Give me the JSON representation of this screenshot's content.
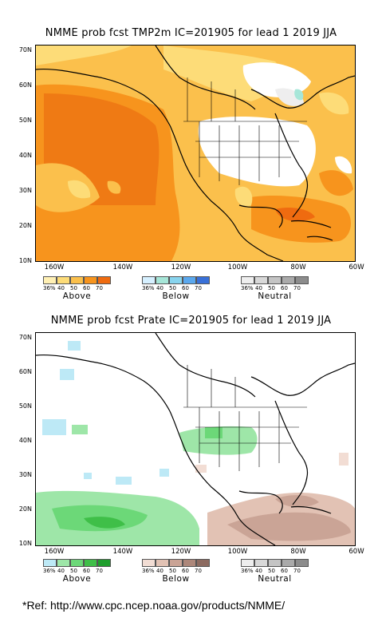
{
  "maps": [
    {
      "title": "NMME prob fcst TMP2m IC=201905 for lead 1 2019 JJA",
      "variable": "TMP2m",
      "lat_labels": [
        "70N",
        "60N",
        "50N",
        "40N",
        "30N",
        "20N",
        "10N"
      ],
      "lon_labels": [
        "160W",
        "140W",
        "120W",
        "100W",
        "80W",
        "60W"
      ],
      "legends": [
        {
          "name": "Above",
          "ticks": [
            "36%",
            "40",
            "50",
            "60",
            "70"
          ],
          "colors": [
            "#fff0b4",
            "#fddc78",
            "#fbc04c",
            "#f7941d",
            "#ef6b10"
          ]
        },
        {
          "name": "Below",
          "ticks": [
            "36%",
            "40",
            "50",
            "60",
            "70"
          ],
          "colors": [
            "#d6f0ff",
            "#a6e6d8",
            "#88d4ee",
            "#5aa8ee",
            "#3870d8"
          ]
        },
        {
          "name": "Neutral",
          "ticks": [
            "36%",
            "40",
            "50",
            "60",
            "70"
          ],
          "colors": [
            "#eeeeee",
            "#d8d8d8",
            "#c4c4c4",
            "#aaaaaa",
            "#8c8c8c"
          ]
        }
      ]
    },
    {
      "title": "NMME prob fcst Prate IC=201905 for lead 1 2019 JJA",
      "variable": "Prate",
      "lat_labels": [
        "70N",
        "60N",
        "50N",
        "40N",
        "30N",
        "20N",
        "10N"
      ],
      "lon_labels": [
        "160W",
        "140W",
        "120W",
        "100W",
        "80W",
        "60W"
      ],
      "legends": [
        {
          "name": "Above",
          "ticks": [
            "36%",
            "40",
            "50",
            "60",
            "70"
          ],
          "colors": [
            "#bde9f6",
            "#9ee6a8",
            "#6cd878",
            "#3fbf48",
            "#1f9e2c"
          ]
        },
        {
          "name": "Below",
          "ticks": [
            "36%",
            "40",
            "50",
            "60",
            "70"
          ],
          "colors": [
            "#f2ddd4",
            "#e2c2b4",
            "#caa496",
            "#ad877a",
            "#8c6a60"
          ]
        },
        {
          "name": "Neutral",
          "ticks": [
            "36%",
            "40",
            "50",
            "60",
            "70"
          ],
          "colors": [
            "#eeeeee",
            "#d8d8d8",
            "#c4c4c4",
            "#aaaaaa",
            "#8c8c8c"
          ]
        }
      ]
    }
  ],
  "reference": "*Ref: http://www.cpc.ncep.noaa.gov/products/NMME/"
}
